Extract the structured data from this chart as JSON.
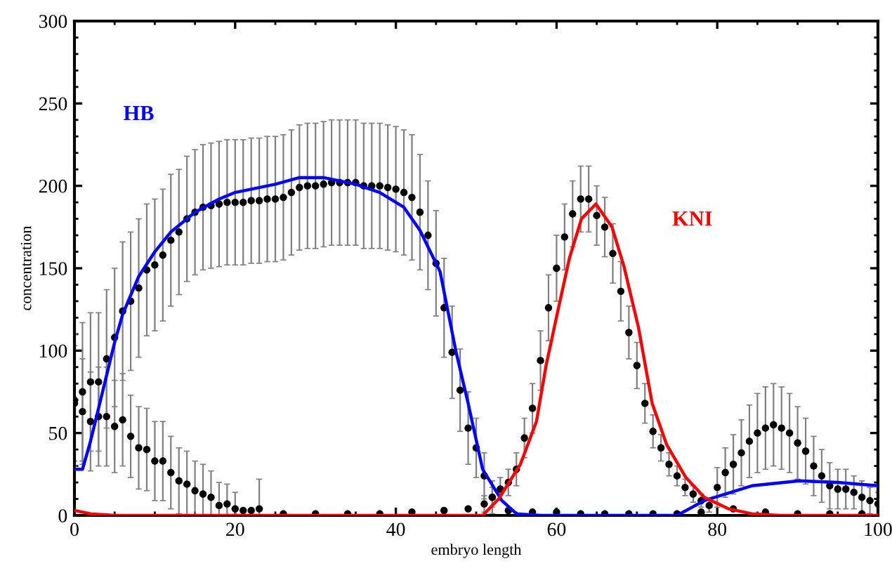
{
  "chart_data": {
    "type": "scatter",
    "xlabel": "embryo length",
    "ylabel": "concentration",
    "xlim": [
      0,
      100
    ],
    "ylim": [
      0,
      300
    ],
    "xticks": [
      0,
      20,
      40,
      60,
      80,
      100
    ],
    "yticks": [
      0,
      50,
      100,
      150,
      200,
      250,
      300
    ],
    "grid": false,
    "legend": false,
    "marker": "circle",
    "series": [
      {
        "color": "#000000",
        "x": [
          0,
          1,
          2,
          3,
          4,
          5,
          6,
          7,
          8,
          9,
          10,
          11,
          12,
          13,
          14,
          15,
          16,
          17,
          18,
          19,
          20,
          21,
          22,
          23,
          24,
          25,
          26,
          27,
          28,
          29,
          30,
          31,
          32,
          33,
          34,
          35,
          36,
          37,
          38,
          39,
          40,
          41,
          42,
          43,
          44,
          45,
          46,
          47,
          48,
          49,
          50,
          51,
          52,
          54,
          57,
          60,
          63,
          66,
          69,
          72,
          75,
          78,
          80,
          81,
          82,
          83,
          84,
          85,
          86,
          87,
          88,
          89,
          90,
          91,
          92,
          93,
          94,
          95,
          96,
          97,
          98,
          99,
          100
        ],
        "values": [
          70,
          75,
          81,
          81,
          95,
          108,
          124,
          130,
          138,
          149,
          152,
          158,
          167,
          172,
          180,
          184,
          187,
          188,
          189,
          190,
          190,
          190,
          191,
          191,
          192,
          192,
          193,
          196,
          199,
          200,
          200,
          201,
          202,
          202,
          202,
          202,
          200,
          200,
          200,
          199,
          198,
          196,
          193,
          184,
          170,
          153,
          126,
          99,
          76,
          53,
          41,
          24,
          11,
          3,
          2,
          2,
          1,
          1,
          1,
          1,
          1,
          2,
          17,
          26,
          31,
          38,
          45,
          50,
          53,
          55,
          53,
          50,
          44,
          39,
          30,
          24,
          18,
          16,
          16,
          14,
          11,
          9,
          7
        ],
        "errors": [
          40,
          42,
          42,
          42,
          42,
          42,
          42,
          42,
          42,
          40,
          40,
          40,
          40,
          38,
          38,
          38,
          38,
          38,
          38,
          38,
          38,
          38,
          38,
          38,
          38,
          38,
          38,
          38,
          38,
          38,
          38,
          38,
          38,
          38,
          38,
          38,
          38,
          38,
          38,
          38,
          38,
          38,
          38,
          35,
          33,
          32,
          30,
          28,
          25,
          22,
          18,
          14,
          10,
          null,
          null,
          null,
          null,
          null,
          null,
          null,
          null,
          null,
          12,
          15,
          18,
          20,
          22,
          24,
          25,
          25,
          25,
          24,
          22,
          20,
          18,
          16,
          14,
          12,
          12,
          10,
          10,
          8,
          7
        ]
      },
      {
        "color": "#000000",
        "x": [
          0,
          1,
          2,
          3,
          4,
          5,
          6,
          7,
          8,
          9,
          10,
          11,
          12,
          13,
          14,
          15,
          16,
          17,
          18,
          19,
          20,
          21,
          22,
          23,
          26,
          30,
          34,
          38,
          42,
          46,
          49,
          51,
          52,
          53,
          54,
          55,
          56,
          57,
          58,
          59,
          60,
          61,
          62,
          63,
          64,
          65,
          66,
          67,
          68,
          69,
          70,
          71,
          72,
          73,
          74,
          75,
          76,
          77,
          78,
          79,
          82,
          86,
          90,
          94,
          98
        ],
        "values": [
          68,
          63,
          57,
          60,
          60,
          54,
          58,
          48,
          41,
          40,
          33,
          33,
          26,
          21,
          19,
          15,
          13,
          11,
          6,
          7,
          4,
          3,
          3,
          4,
          1,
          1,
          1,
          1,
          2,
          3,
          4,
          7,
          11,
          16,
          20,
          28,
          47,
          65,
          94,
          126,
          150,
          169,
          183,
          192,
          192,
          182,
          175,
          159,
          136,
          111,
          91,
          68,
          51,
          41,
          31,
          24,
          17,
          13,
          9,
          6,
          4,
          2,
          1,
          1,
          1
        ],
        "errors": [
          35,
          32,
          30,
          30,
          30,
          28,
          28,
          25,
          25,
          25,
          24,
          24,
          22,
          20,
          20,
          [
            0,
            33
          ],
          [
            0,
            31
          ],
          [
            0,
            27
          ],
          [
            0,
            20
          ],
          [
            0,
            19
          ],
          [
            0,
            14
          ],
          null,
          null,
          [
            0,
            22
          ],
          null,
          null,
          null,
          null,
          null,
          null,
          null,
          5,
          6,
          7,
          8,
          10,
          12,
          15,
          18,
          20,
          20,
          20,
          20,
          20,
          20,
          18,
          18,
          18,
          18,
          16,
          14,
          12,
          10,
          8,
          7,
          6,
          5,
          5,
          4,
          4,
          null,
          null,
          null,
          null,
          null
        ]
      },
      {
        "type": "line",
        "name": "HB",
        "color": "#0000ff",
        "marker": "none",
        "x": [
          0,
          1,
          2,
          3,
          4,
          5,
          6,
          8,
          10,
          12,
          15,
          18,
          20,
          25,
          28,
          31,
          35,
          38,
          41,
          43,
          45.5,
          47.5,
          49,
          50.8,
          53.2,
          55,
          58,
          75,
          78.4,
          84.3,
          90.2,
          95,
          100
        ],
        "values": [
          28,
          28,
          45,
          65,
          85,
          105,
          122,
          145,
          160,
          172,
          184,
          192,
          196,
          201,
          205,
          205,
          201,
          196,
          187,
          173,
          148,
          99,
          68,
          28,
          9,
          1,
          0,
          0,
          9,
          18,
          21,
          20,
          18
        ]
      },
      {
        "type": "line",
        "name": "KNI",
        "color": "#ff0000",
        "marker": "none",
        "x": [
          0,
          2,
          5,
          50.8,
          52.8,
          55.5,
          57.5,
          58.7,
          60.2,
          61.6,
          63.1,
          64.9,
          66.9,
          68.4,
          70.2,
          71.9,
          73.7,
          76.1,
          78.4,
          81.4,
          84.3,
          87.8,
          100
        ],
        "values": [
          3,
          1,
          0,
          0,
          10,
          31,
          57,
          91,
          125,
          156,
          180,
          189,
          175,
          151,
          114,
          68,
          43,
          23,
          11,
          4,
          1,
          0,
          0
        ]
      }
    ]
  }
}
